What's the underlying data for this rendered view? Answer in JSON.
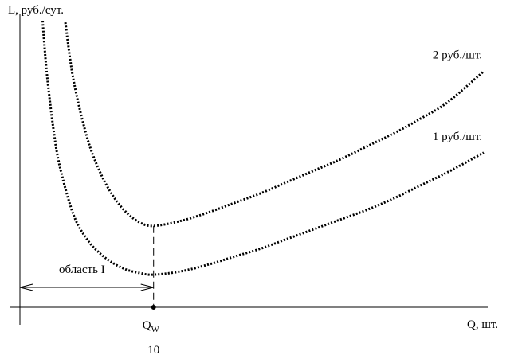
{
  "chart_data": {
    "type": "line",
    "title": "",
    "ylabel": "L, руб./сут.",
    "xlabel": "Q, шт.",
    "xlim": [
      0,
      35
    ],
    "ylim": [
      0,
      18
    ],
    "series": [
      {
        "name": "2 руб./шт.",
        "points": [
          [
            3.4,
            17.5
          ],
          [
            4.0,
            14.0
          ],
          [
            5.0,
            10.5
          ],
          [
            6.0,
            8.3
          ],
          [
            7.0,
            6.8
          ],
          [
            8.0,
            5.8
          ],
          [
            9.0,
            5.2
          ],
          [
            10.0,
            5.0
          ],
          [
            12.0,
            5.3
          ],
          [
            14.0,
            5.8
          ],
          [
            16.0,
            6.4
          ],
          [
            18.0,
            7.0
          ],
          [
            20.0,
            7.7
          ],
          [
            22.0,
            8.4
          ],
          [
            24.0,
            9.1
          ],
          [
            26.0,
            9.9
          ],
          [
            28.0,
            10.7
          ],
          [
            30.0,
            11.6
          ],
          [
            32.0,
            12.6
          ],
          [
            34.7,
            14.5
          ]
        ]
      },
      {
        "name": "1 руб./шт.",
        "points": [
          [
            1.7,
            17.6
          ],
          [
            2.0,
            14.5
          ],
          [
            2.5,
            11.0
          ],
          [
            3.0,
            8.6
          ],
          [
            4.0,
            5.7
          ],
          [
            5.0,
            4.2
          ],
          [
            6.0,
            3.3
          ],
          [
            7.0,
            2.7
          ],
          [
            8.0,
            2.3
          ],
          [
            9.0,
            2.1
          ],
          [
            10.0,
            2.0
          ],
          [
            12.0,
            2.2
          ],
          [
            14.0,
            2.6
          ],
          [
            16.0,
            3.1
          ],
          [
            18.0,
            3.6
          ],
          [
            20.0,
            4.2
          ],
          [
            22.0,
            4.8
          ],
          [
            24.0,
            5.4
          ],
          [
            26.0,
            6.0
          ],
          [
            28.0,
            6.7
          ],
          [
            30.0,
            7.5
          ],
          [
            32.0,
            8.3
          ],
          [
            34.7,
            9.5
          ]
        ]
      }
    ],
    "marker": {
      "x": 10,
      "label_main": "Q",
      "label_sub": "W",
      "value_label": "10"
    },
    "region": {
      "from": 0,
      "to": 10,
      "label": "область I"
    },
    "grid": false,
    "legend": "none"
  }
}
